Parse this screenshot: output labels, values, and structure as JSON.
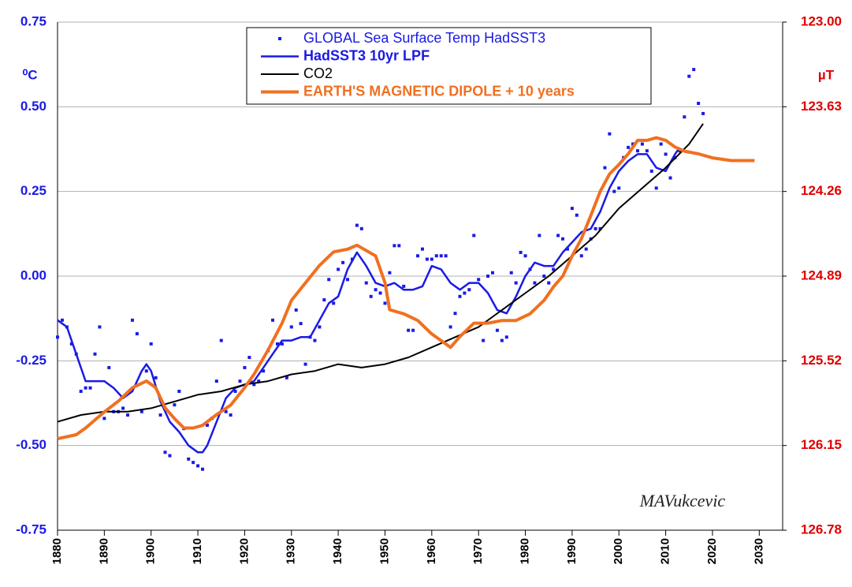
{
  "chart_data": {
    "type": "combo",
    "y_label": "⁰C",
    "y2_label": "µT",
    "annotation": "MAVukcevic",
    "xlim": [
      1880,
      2035
    ],
    "xticks": [
      1880,
      1890,
      1900,
      1910,
      1920,
      1930,
      1940,
      1950,
      1960,
      1970,
      1980,
      1990,
      2000,
      2010,
      2020,
      2030
    ],
    "ylim": [
      -0.75,
      0.75
    ],
    "yticks": [
      {
        "value": -0.75,
        "label": "-0.75"
      },
      {
        "value": -0.5,
        "label": "-0.50"
      },
      {
        "value": -0.25,
        "label": "-0.25"
      },
      {
        "value": 0,
        "label": "0.00"
      },
      {
        "value": 0.25,
        "label": "0.25"
      },
      {
        "value": 0.5,
        "label": "0.50"
      },
      {
        "value": 0.75,
        "label": "0.75"
      }
    ],
    "y2lim": [
      126.78,
      123
    ],
    "y2ticks": [
      {
        "value": 126.78,
        "label": "126.78"
      },
      {
        "value": 126.15,
        "label": "126.15"
      },
      {
        "value": 125.52,
        "label": "125.52"
      },
      {
        "value": 124.89,
        "label": "124.89"
      },
      {
        "value": 124.26,
        "label": "124.26"
      },
      {
        "value": 123.63,
        "label": "123.63"
      },
      {
        "value": 123,
        "label": "123.00"
      }
    ],
    "grid": true,
    "legend": "upper center",
    "series": [
      {
        "name": "GLOBAL Sea Surface Temp HadSST3",
        "kind": "scatter",
        "color": "#1a1ae6",
        "x": [
          1880,
          1881,
          1882,
          1883,
          1884,
          1885,
          1886,
          1887,
          1888,
          1889,
          1890,
          1891,
          1892,
          1893,
          1894,
          1895,
          1896,
          1897,
          1898,
          1899,
          1900,
          1901,
          1902,
          1903,
          1904,
          1905,
          1906,
          1907,
          1908,
          1909,
          1910,
          1911,
          1912,
          1913,
          1914,
          1915,
          1916,
          1917,
          1918,
          1919,
          1920,
          1921,
          1922,
          1923,
          1924,
          1925,
          1926,
          1927,
          1928,
          1929,
          1930,
          1931,
          1932,
          1933,
          1934,
          1935,
          1936,
          1937,
          1938,
          1939,
          1940,
          1941,
          1942,
          1943,
          1944,
          1945,
          1946,
          1947,
          1948,
          1949,
          1950,
          1951,
          1952,
          1953,
          1954,
          1955,
          1956,
          1957,
          1958,
          1959,
          1960,
          1961,
          1962,
          1963,
          1964,
          1965,
          1966,
          1967,
          1968,
          1969,
          1970,
          1971,
          1972,
          1973,
          1974,
          1975,
          1976,
          1977,
          1978,
          1979,
          1980,
          1981,
          1982,
          1983,
          1984,
          1985,
          1986,
          1987,
          1988,
          1989,
          1990,
          1991,
          1992,
          1993,
          1994,
          1995,
          1996,
          1997,
          1998,
          1999,
          2000,
          2001,
          2002,
          2003,
          2004,
          2005,
          2006,
          2007,
          2008,
          2009,
          2010,
          2011,
          2012,
          2013,
          2014,
          2015,
          2016,
          2017,
          2018
        ],
        "values": [
          -0.18,
          -0.13,
          -0.15,
          -0.2,
          -0.23,
          -0.34,
          -0.33,
          -0.33,
          -0.23,
          -0.15,
          -0.42,
          -0.27,
          -0.4,
          -0.4,
          -0.39,
          -0.41,
          -0.13,
          -0.17,
          -0.4,
          -0.28,
          -0.2,
          -0.3,
          -0.41,
          -0.52,
          -0.53,
          -0.38,
          -0.34,
          -0.45,
          -0.54,
          -0.55,
          -0.56,
          -0.57,
          -0.44,
          -0.42,
          -0.31,
          -0.19,
          -0.4,
          -0.41,
          -0.34,
          -0.31,
          -0.27,
          -0.24,
          -0.32,
          -0.31,
          -0.28,
          -0.22,
          -0.13,
          -0.2,
          -0.2,
          -0.3,
          -0.15,
          -0.1,
          -0.14,
          -0.26,
          -0.18,
          -0.19,
          -0.15,
          -0.07,
          -0.01,
          -0.08,
          0.02,
          0.04,
          -0.01,
          0.05,
          0.15,
          0.14,
          -0.02,
          -0.06,
          -0.04,
          -0.05,
          -0.08,
          0.01,
          0.09,
          0.09,
          -0.03,
          -0.16,
          -0.16,
          0.06,
          0.08,
          0.05,
          0.05,
          0.06,
          0.06,
          0.06,
          -0.15,
          -0.11,
          -0.06,
          -0.05,
          -0.04,
          0.12,
          -0.01,
          -0.19,
          0,
          0.01,
          -0.16,
          -0.19,
          -0.18,
          0.01,
          -0.02,
          0.07,
          0.06,
          0.02,
          -0.02,
          0.12,
          0,
          -0.02,
          0.02,
          0.12,
          0.11,
          0.08,
          0.2,
          0.18,
          0.06,
          0.08,
          0.11,
          0.14,
          0.14,
          0.32,
          0.42,
          0.25,
          0.26,
          0.35,
          0.38,
          0.39,
          0.37,
          0.39,
          0.37,
          0.31,
          0.26,
          0.39,
          0.36,
          0.29,
          0.35,
          0.37,
          0.47,
          0.59,
          0.61,
          0.51,
          0.48
        ]
      },
      {
        "name": "HadSST3 10yr LPF",
        "kind": "line",
        "color": "#1a1ae6",
        "x": [
          1880,
          1882,
          1884,
          1886,
          1888,
          1890,
          1892,
          1894,
          1896,
          1898,
          1899,
          1900,
          1902,
          1904,
          1906,
          1908,
          1910,
          1911,
          1912,
          1914,
          1916,
          1918,
          1920,
          1922,
          1924,
          1926,
          1928,
          1930,
          1932,
          1934,
          1936,
          1938,
          1940,
          1942,
          1944,
          1946,
          1948,
          1950,
          1952,
          1954,
          1956,
          1958,
          1960,
          1962,
          1964,
          1966,
          1968,
          1970,
          1972,
          1974,
          1976,
          1978,
          1980,
          1982,
          1984,
          1986,
          1988,
          1990,
          1992,
          1994,
          1996,
          1998,
          2000,
          2002,
          2004,
          2006,
          2008,
          2010,
          2012,
          2013
        ],
        "values": [
          -0.13,
          -0.15,
          -0.23,
          -0.31,
          -0.31,
          -0.31,
          -0.33,
          -0.36,
          -0.34,
          -0.28,
          -0.26,
          -0.28,
          -0.37,
          -0.43,
          -0.46,
          -0.5,
          -0.52,
          -0.52,
          -0.5,
          -0.43,
          -0.36,
          -0.33,
          -0.32,
          -0.31,
          -0.27,
          -0.23,
          -0.19,
          -0.19,
          -0.18,
          -0.18,
          -0.13,
          -0.08,
          -0.06,
          0.02,
          0.07,
          0.03,
          -0.02,
          -0.03,
          -0.02,
          -0.04,
          -0.04,
          -0.03,
          0.03,
          0.02,
          -0.02,
          -0.04,
          -0.02,
          -0.02,
          -0.05,
          -0.1,
          -0.11,
          -0.06,
          0,
          0.04,
          0.03,
          0.03,
          0.07,
          0.1,
          0.13,
          0.14,
          0.19,
          0.26,
          0.31,
          0.34,
          0.36,
          0.36,
          0.32,
          0.31,
          0.36,
          0.38
        ]
      },
      {
        "name": "CO2",
        "kind": "line",
        "color": "#000000",
        "x": [
          1880,
          1885,
          1890,
          1895,
          1900,
          1905,
          1910,
          1915,
          1920,
          1925,
          1930,
          1935,
          1940,
          1945,
          1950,
          1955,
          1960,
          1965,
          1970,
          1975,
          1980,
          1985,
          1990,
          1995,
          2000,
          2005,
          2010,
          2015,
          2018
        ],
        "values": [
          -0.43,
          -0.41,
          -0.4,
          -0.4,
          -0.39,
          -0.37,
          -0.35,
          -0.34,
          -0.32,
          -0.31,
          -0.29,
          -0.28,
          -0.26,
          -0.27,
          -0.26,
          -0.24,
          -0.21,
          -0.18,
          -0.15,
          -0.1,
          -0.05,
          0,
          0.06,
          0.12,
          0.2,
          0.26,
          0.32,
          0.39,
          0.45
        ]
      },
      {
        "name": "EARTH'S MAGNETIC DIPOLE + 10 years",
        "kind": "line",
        "axis": "y2",
        "color": "#f07020",
        "x": [
          1880,
          1884,
          1886,
          1890,
          1893,
          1896,
          1899,
          1901,
          1903,
          1905,
          1907,
          1909,
          1911,
          1914,
          1917,
          1920,
          1922,
          1925,
          1928,
          1930,
          1933,
          1936,
          1939,
          1942,
          1944,
          1948,
          1950,
          1951,
          1954,
          1957,
          1960,
          1962,
          1964,
          1966,
          1969,
          1972,
          1975,
          1978,
          1981,
          1984,
          1986,
          1988,
          1990,
          1992,
          1994,
          1996,
          1998,
          2000,
          2002,
          2004,
          2006,
          2008,
          2010,
          2012,
          2014,
          2017,
          2020,
          2024,
          2026,
          2029
        ],
        "values": [
          126.1,
          126.07,
          126.02,
          125.9,
          125.82,
          125.72,
          125.67,
          125.72,
          125.87,
          125.95,
          126.02,
          126.02,
          126,
          125.92,
          125.85,
          125.72,
          125.62,
          125.44,
          125.24,
          125.07,
          124.94,
          124.81,
          124.71,
          124.69,
          124.66,
          124.74,
          124.94,
          125.14,
          125.17,
          125.22,
          125.32,
          125.37,
          125.42,
          125.34,
          125.24,
          125.24,
          125.22,
          125.22,
          125.17,
          125.07,
          124.97,
          124.89,
          124.74,
          124.61,
          124.44,
          124.26,
          124.13,
          124.06,
          123.98,
          123.88,
          123.88,
          123.86,
          123.88,
          123.93,
          123.96,
          123.98,
          124.01,
          124.03,
          124.03,
          124.03
        ]
      }
    ]
  }
}
